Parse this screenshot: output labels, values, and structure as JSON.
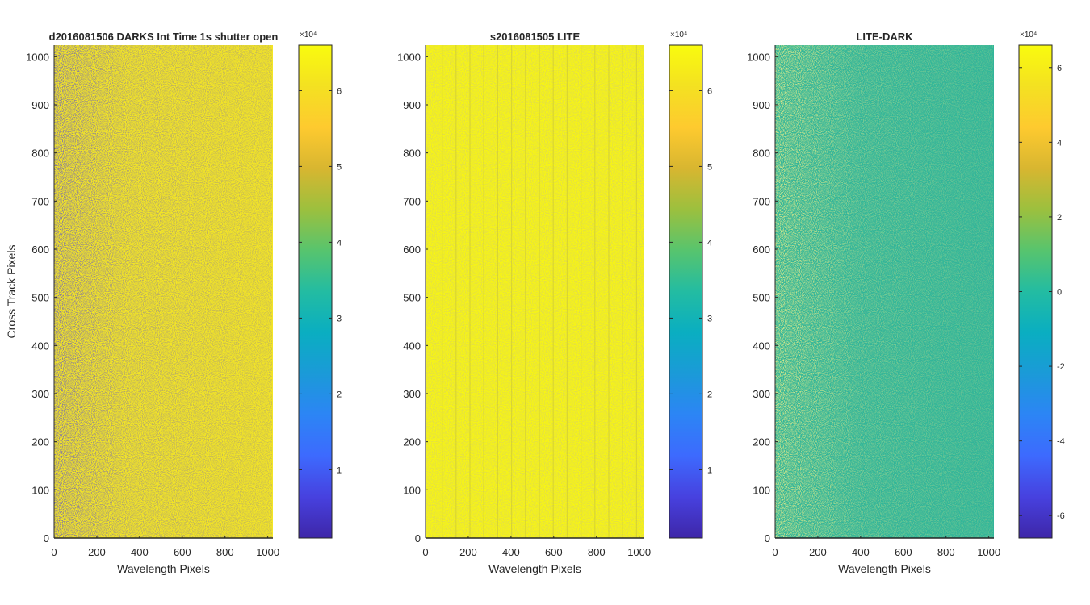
{
  "colormap": [
    "#3e26a8",
    "#4741df",
    "#3d6afe",
    "#2c85f5",
    "#1b9ad8",
    "#0aaec1",
    "#23bca2",
    "#57c46e",
    "#9cc03e",
    "#d8b630",
    "#feca2f",
    "#f4e121",
    "#f9fb0e"
  ],
  "chart_data": [
    {
      "type": "heatmap",
      "title": "d2016081506  DARKS   Int Time 1s   shutter open",
      "xlabel": "Wavelength Pixels",
      "ylabel": "Cross Track Pixels",
      "xlim": [
        0,
        1024
      ],
      "ylim": [
        0,
        1024
      ],
      "xticks": [
        "0",
        "200",
        "400",
        "600",
        "800",
        "1000"
      ],
      "yticks": [
        "0",
        "100",
        "200",
        "300",
        "400",
        "500",
        "600",
        "700",
        "800",
        "900",
        "1000"
      ],
      "colorbar": {
        "clim": [
          0.1,
          6.6
        ],
        "ticks": [
          "1",
          "2",
          "3",
          "4",
          "5",
          "6"
        ],
        "exponent": "×10⁴"
      },
      "data_description": "mostly saturated yellow (~6.5×10⁴) with dense dark speckle near columns 0–200"
    },
    {
      "type": "heatmap",
      "title": "s2016081505  LITE",
      "xlabel": "Wavelength Pixels",
      "ylabel": "",
      "xlim": [
        0,
        1024
      ],
      "ylim": [
        0,
        1024
      ],
      "xticks": [
        "0",
        "200",
        "400",
        "600",
        "800",
        "1000"
      ],
      "yticks": [
        "0",
        "100",
        "200",
        "300",
        "400",
        "500",
        "600",
        "700",
        "800",
        "900",
        "1000"
      ],
      "colorbar": {
        "clim": [
          0.1,
          6.6
        ],
        "ticks": [
          "1",
          "2",
          "3",
          "4",
          "5",
          "6"
        ],
        "exponent": "×10⁴"
      },
      "data_description": "saturated yellow with faint periodic vertical lines"
    },
    {
      "type": "heatmap",
      "title": "LITE-DARK",
      "xlabel": "Wavelength Pixels",
      "ylabel": "",
      "xlim": [
        0,
        1024
      ],
      "ylim": [
        0,
        1024
      ],
      "xticks": [
        "0",
        "200",
        "400",
        "600",
        "800",
        "1000"
      ],
      "yticks": [
        "0",
        "100",
        "200",
        "300",
        "400",
        "500",
        "600",
        "700",
        "800",
        "900",
        "1000"
      ],
      "colorbar": {
        "clim": [
          -6.6,
          6.6
        ],
        "ticks": [
          "-6",
          "-4",
          "-2",
          "0",
          "2",
          "4",
          "6"
        ],
        "exponent": "×10⁴"
      },
      "data_description": "teal-green noise field around 0 with lighter green speckle near left columns"
    }
  ]
}
